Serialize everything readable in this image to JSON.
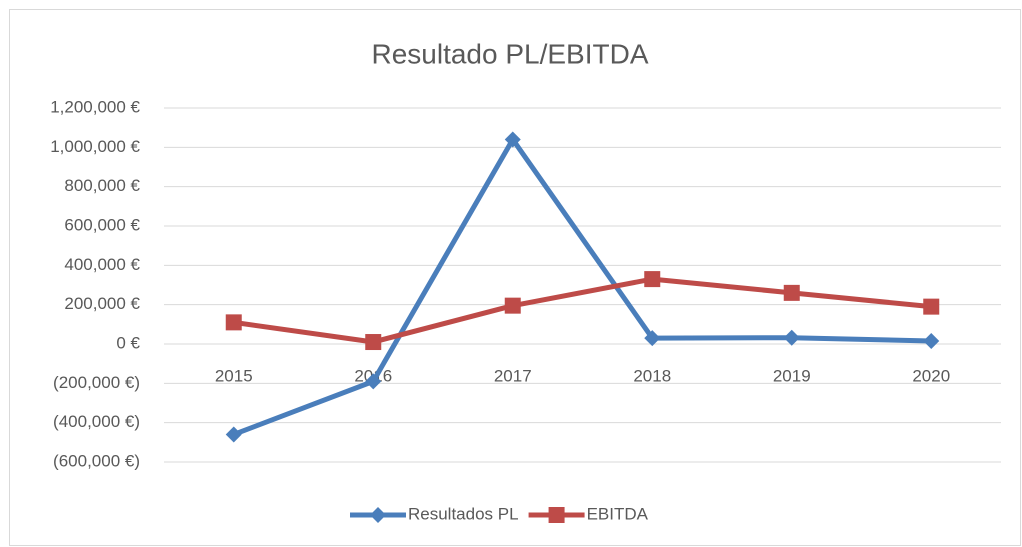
{
  "chart_data": {
    "type": "line",
    "title": "Resultado PL/EBITDA",
    "categories": [
      "2015",
      "2016",
      "2017",
      "2018",
      "2019",
      "2020"
    ],
    "series": [
      {
        "name": "Resultados PL",
        "color": "#4a7ebb",
        "marker": "diamond",
        "values": [
          -460000,
          -190000,
          1040000,
          30000,
          32000,
          15000
        ]
      },
      {
        "name": "EBITDA",
        "color": "#be4b48",
        "marker": "square",
        "values": [
          110000,
          10000,
          195000,
          330000,
          260000,
          190000
        ]
      }
    ],
    "ylim": [
      -600000,
      1200000
    ],
    "yticks": [
      {
        "value": -600000,
        "label": "(600,000 €)"
      },
      {
        "value": -400000,
        "label": "(400,000 €)"
      },
      {
        "value": -200000,
        "label": "(200,000 €)"
      },
      {
        "value": 0,
        "label": "0 €"
      },
      {
        "value": 200000,
        "label": "200,000 €"
      },
      {
        "value": 400000,
        "label": "400,000 €"
      },
      {
        "value": 600000,
        "label": "600,000 €"
      },
      {
        "value": 800000,
        "label": "800,000 €"
      },
      {
        "value": 1000000,
        "label": "1,000,000 €"
      },
      {
        "value": 1200000,
        "label": "1,200,000 €"
      }
    ],
    "grid": true,
    "legend": "bottom"
  }
}
